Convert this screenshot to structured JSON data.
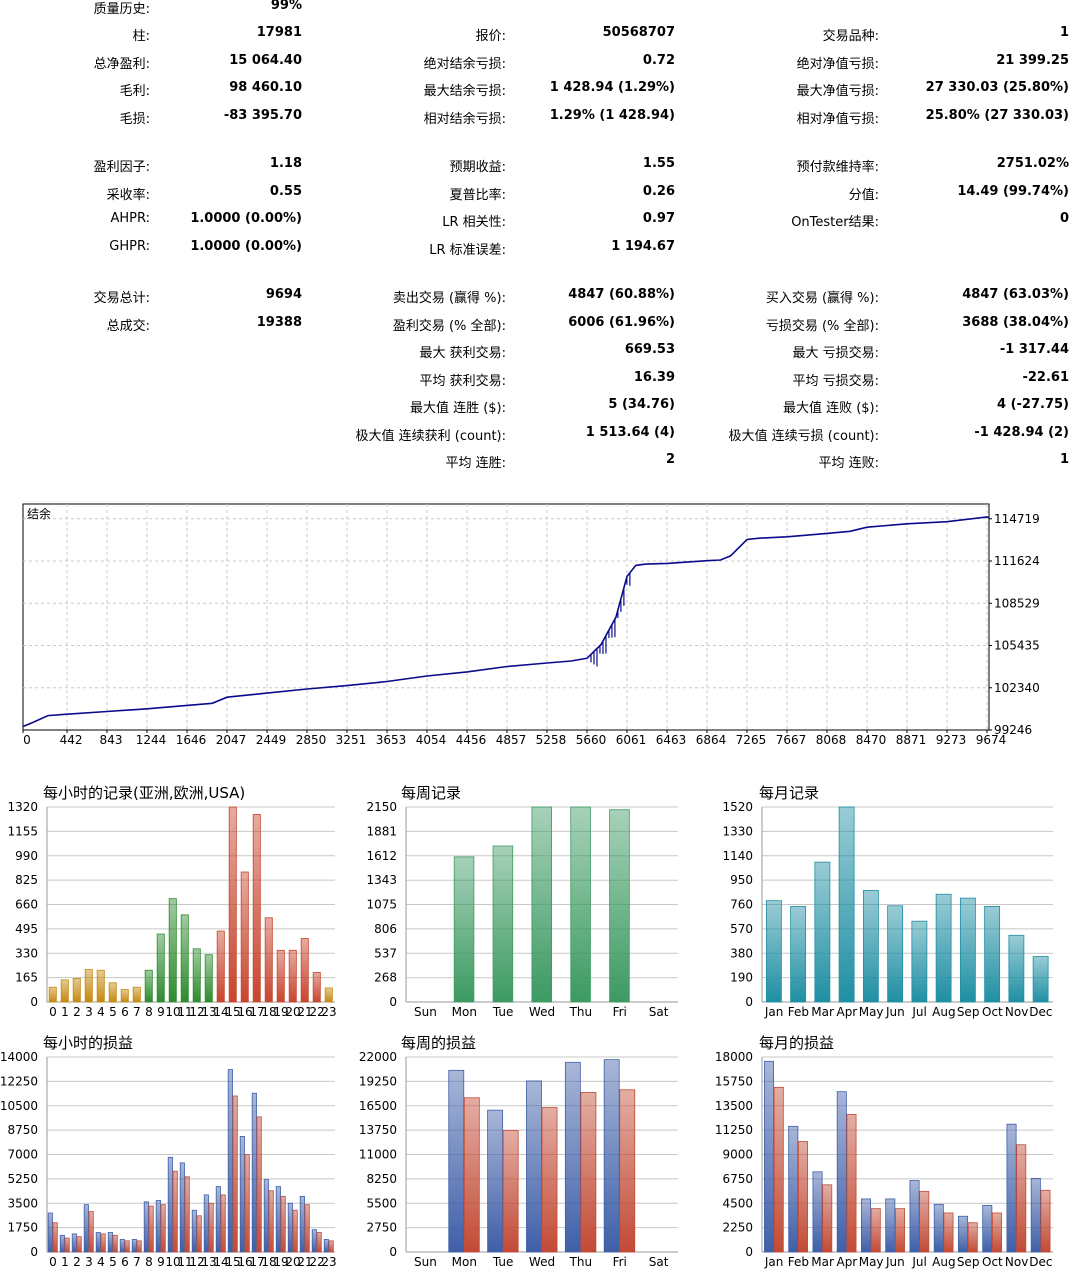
{
  "stats": {
    "col1": [
      {
        "label": "质量历史:",
        "value": "99%",
        "y": 6
      },
      {
        "label": "柱:",
        "value": "17981",
        "y": 33
      },
      {
        "label": "总净盈利:",
        "value": "15 064.40",
        "y": 61
      },
      {
        "label": "毛利:",
        "value": "98 460.10",
        "y": 88
      },
      {
        "label": "毛损:",
        "value": "-83 395.70",
        "y": 116
      },
      {
        "label": "盈利因子:",
        "value": "1.18",
        "y": 164
      },
      {
        "label": "采收率:",
        "value": "0.55",
        "y": 192
      },
      {
        "label": "AHPR:",
        "value": "1.0000 (0.00%)",
        "y": 219
      },
      {
        "label": "GHPR:",
        "value": "1.0000 (0.00%)",
        "y": 247
      },
      {
        "label": "交易总计:",
        "value": "9694",
        "y": 295
      },
      {
        "label": "总成交:",
        "value": "19388",
        "y": 323
      }
    ],
    "col2": [
      {
        "label": "报价:",
        "value": "50568707",
        "y": 33
      },
      {
        "label": "绝对结余亏损:",
        "value": "0.72",
        "y": 61
      },
      {
        "label": "最大结余亏损:",
        "value": "1 428.94 (1.29%)",
        "y": 88
      },
      {
        "label": "相对结余亏损:",
        "value": "1.29% (1 428.94)",
        "y": 116
      },
      {
        "label": "预期收益:",
        "value": "1.55",
        "y": 164
      },
      {
        "label": "夏普比率:",
        "value": "0.26",
        "y": 192
      },
      {
        "label": "LR 相关性:",
        "value": "0.97",
        "y": 219
      },
      {
        "label": "LR 标准误差:",
        "value": "1 194.67",
        "y": 247
      },
      {
        "label": "卖出交易 (赢得 %):",
        "value": "4847 (60.88%)",
        "y": 295
      },
      {
        "label": "盈利交易 (% 全部):",
        "value": "6006 (61.96%)",
        "y": 323
      },
      {
        "label": "最大 获利交易:",
        "value": "669.53",
        "y": 350
      },
      {
        "label": "平均 获利交易:",
        "value": "16.39",
        "y": 378
      },
      {
        "label": "最大值 连胜 ($):",
        "value": "5 (34.76)",
        "y": 405
      },
      {
        "label": "极大值 连续获利 (count):",
        "value": "1 513.64 (4)",
        "y": 433
      },
      {
        "label": "平均 连胜:",
        "value": "2",
        "y": 460
      }
    ],
    "col3": [
      {
        "label": "交易品种:",
        "value": "1",
        "y": 33
      },
      {
        "label": "绝对净值亏损:",
        "value": "21 399.25",
        "y": 61
      },
      {
        "label": "最大净值亏损:",
        "value": "27 330.03 (25.80%)",
        "y": 88
      },
      {
        "label": "相对净值亏损:",
        "value": "25.80% (27 330.03)",
        "y": 116
      },
      {
        "label": "预付款维持率:",
        "value": "2751.02%",
        "y": 164
      },
      {
        "label": "分值:",
        "value": "14.49 (99.74%)",
        "y": 192
      },
      {
        "label": "OnTester结果:",
        "value": "0",
        "y": 219
      },
      {
        "label": "买入交易 (赢得 %):",
        "value": "4847 (63.03%)",
        "y": 295
      },
      {
        "label": "亏损交易 (% 全部):",
        "value": "3688 (38.04%)",
        "y": 323
      },
      {
        "label": "最大 亏损交易:",
        "value": "-1 317.44",
        "y": 350
      },
      {
        "label": "平均 亏损交易:",
        "value": "-22.61",
        "y": 378
      },
      {
        "label": "最大值 连败 ($):",
        "value": "4 (-27.75)",
        "y": 405
      },
      {
        "label": "极大值 连续亏损 (count):",
        "value": "-1 428.94 (2)",
        "y": 433
      },
      {
        "label": "平均 连败:",
        "value": "1",
        "y": 460
      }
    ]
  },
  "chart_data": [
    {
      "type": "line",
      "title": "结余",
      "x_ticks": [
        0,
        442,
        843,
        1244,
        1646,
        2047,
        2449,
        2850,
        3251,
        3653,
        4054,
        4456,
        4857,
        5258,
        5660,
        6061,
        6463,
        6864,
        7265,
        7667,
        8068,
        8470,
        8871,
        9273,
        9674
      ],
      "y_ticks": [
        99246,
        102340,
        105435,
        108529,
        111624,
        114719
      ],
      "xlim": [
        0,
        9694
      ],
      "ylim": [
        99246,
        115800
      ],
      "x": [
        0,
        100,
        250,
        442,
        843,
        1244,
        1646,
        1900,
        2047,
        2449,
        2850,
        3251,
        3653,
        4054,
        4456,
        4857,
        5258,
        5500,
        5660,
        5800,
        5950,
        6061,
        6150,
        6250,
        6463,
        6864,
        7000,
        7100,
        7265,
        7400,
        7667,
        8068,
        8300,
        8470,
        8871,
        9273,
        9674,
        9694
      ],
      "y": [
        99500,
        99800,
        100300,
        100400,
        100600,
        100800,
        101050,
        101200,
        101650,
        101950,
        102250,
        102500,
        102800,
        103200,
        103500,
        103900,
        104150,
        104300,
        104500,
        105500,
        107500,
        110500,
        111300,
        111400,
        111450,
        111650,
        111700,
        112000,
        113200,
        113300,
        113400,
        113650,
        113800,
        114100,
        114350,
        114500,
        114850,
        114800
      ]
    },
    {
      "type": "bar",
      "title": "每小时的记录(亚洲,欧洲,USA)",
      "categories": [
        "0",
        "1",
        "2",
        "3",
        "4",
        "5",
        "6",
        "7",
        "8",
        "9",
        "10",
        "11",
        "12",
        "13",
        "14",
        "15",
        "16",
        "17",
        "18",
        "19",
        "20",
        "21",
        "22",
        "23"
      ],
      "values": [
        100,
        150,
        160,
        220,
        215,
        130,
        85,
        100,
        215,
        460,
        700,
        590,
        360,
        320,
        480,
        1320,
        880,
        1270,
        570,
        350,
        350,
        430,
        200,
        95
      ],
      "y_ticks": [
        0,
        165,
        330,
        495,
        660,
        825,
        990,
        1155,
        1320
      ],
      "ylim": [
        0,
        1320
      ],
      "colors": [
        "#c58a10",
        "#c58a10",
        "#c58a10",
        "#c58a10",
        "#c58a10",
        "#c58a10",
        "#c58a10",
        "#c58a10",
        "#2e8b2e",
        "#2e8b2e",
        "#2e8b2e",
        "#2e8b2e",
        "#2e8b2e",
        "#2e8b2e",
        "#c8452e",
        "#c8452e",
        "#c8452e",
        "#c8452e",
        "#c8452e",
        "#c8452e",
        "#c8452e",
        "#c8452e",
        "#c8452e",
        "#c58a10"
      ]
    },
    {
      "type": "bar",
      "title": "每周记录",
      "categories": [
        "Sun",
        "Mon",
        "Tue",
        "Wed",
        "Thu",
        "Fri",
        "Sat"
      ],
      "values": [
        0,
        1600,
        1720,
        2150,
        2150,
        2120,
        0
      ],
      "y_ticks": [
        0,
        268,
        537,
        806,
        1075,
        1343,
        1612,
        1881,
        2150
      ],
      "ylim": [
        0,
        2150
      ],
      "colors": [
        "#3c9a62"
      ]
    },
    {
      "type": "bar",
      "title": "每月记录",
      "categories": [
        "Jan",
        "Feb",
        "Mar",
        "Apr",
        "May",
        "Jun",
        "Jul",
        "Aug",
        "Sep",
        "Oct",
        "Nov",
        "Dec"
      ],
      "values": [
        790,
        745,
        1090,
        1520,
        870,
        750,
        630,
        840,
        810,
        745,
        520,
        355
      ],
      "y_ticks": [
        0,
        190,
        380,
        570,
        760,
        950,
        1140,
        1330,
        1520
      ],
      "ylim": [
        0,
        1520
      ],
      "colors": [
        "#1f8fa3"
      ]
    },
    {
      "type": "bar",
      "title": "每小时的损益",
      "categories": [
        "0",
        "1",
        "2",
        "3",
        "4",
        "5",
        "6",
        "7",
        "8",
        "9",
        "10",
        "11",
        "12",
        "13",
        "14",
        "15",
        "16",
        "17",
        "18",
        "19",
        "20",
        "21",
        "22",
        "23"
      ],
      "y_ticks": [
        0,
        1750,
        3500,
        5250,
        7000,
        8750,
        10500,
        12250,
        14000
      ],
      "ylim": [
        0,
        14000
      ],
      "series": [
        {
          "values": [
            2800,
            1200,
            1300,
            3400,
            1400,
            1400,
            900,
            900,
            3600,
            3700,
            6800,
            6400,
            3000,
            4100,
            4700,
            13100,
            8300,
            11400,
            5200,
            4700,
            3500,
            4000,
            1600,
            900
          ],
          "color": "#3f5fa8"
        },
        {
          "values": [
            2100,
            1000,
            1100,
            2900,
            1300,
            1200,
            800,
            800,
            3300,
            3400,
            5800,
            5400,
            2600,
            3500,
            4100,
            11200,
            7000,
            9700,
            4400,
            4000,
            3000,
            3400,
            1400,
            800
          ],
          "color": "#c24a35"
        }
      ]
    },
    {
      "type": "bar",
      "title": "每周的损益",
      "categories": [
        "Sun",
        "Mon",
        "Tue",
        "Wed",
        "Thu",
        "Fri",
        "Sat"
      ],
      "y_ticks": [
        0,
        2750,
        5500,
        8250,
        11000,
        13750,
        16500,
        19250,
        22000
      ],
      "ylim": [
        0,
        22000
      ],
      "series": [
        {
          "values": [
            0,
            20500,
            16000,
            19300,
            21400,
            21700,
            0
          ],
          "color": "#3f5fa8"
        },
        {
          "values": [
            0,
            17400,
            13700,
            16300,
            18000,
            18300,
            0
          ],
          "color": "#c24a35"
        }
      ]
    },
    {
      "type": "bar",
      "title": "每月的损益",
      "categories": [
        "Jan",
        "Feb",
        "Mar",
        "Apr",
        "May",
        "Jun",
        "Jul",
        "Aug",
        "Sep",
        "Oct",
        "Nov",
        "Dec"
      ],
      "y_ticks": [
        0,
        2250,
        4500,
        6750,
        9000,
        11250,
        13500,
        15750,
        18000
      ],
      "ylim": [
        0,
        18000
      ],
      "series": [
        {
          "values": [
            17600,
            11600,
            7400,
            14800,
            4900,
            4900,
            6600,
            4400,
            3300,
            4300,
            11800,
            6800
          ],
          "color": "#3f5fa8"
        },
        {
          "values": [
            15200,
            10200,
            6200,
            12700,
            4000,
            4000,
            5600,
            3600,
            2700,
            3600,
            9900,
            5700
          ],
          "color": "#c24a35"
        }
      ]
    }
  ]
}
